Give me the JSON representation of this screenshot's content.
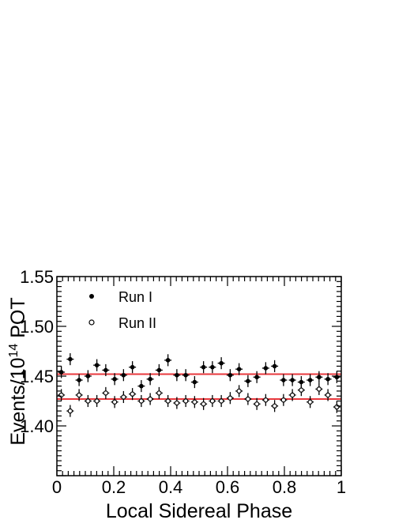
{
  "chart_data": {
    "type": "scatter",
    "xlabel": "Local Sidereal Phase",
    "ylabel_parts": {
      "prefix": "Events/10",
      "superscript": "14",
      "suffix": " POT"
    },
    "xlim": [
      0,
      1
    ],
    "ylim": [
      1.35,
      1.55
    ],
    "x_ticks": [
      0,
      0.2,
      0.4,
      0.6,
      0.8,
      1
    ],
    "x_tick_labels": [
      "0",
      "0.2",
      "0.4",
      "0.6",
      "0.8",
      "1"
    ],
    "y_ticks": [
      1.4,
      1.45,
      1.5,
      1.55
    ],
    "y_tick_labels": [
      "1.40",
      "1.45",
      "1.50",
      "1.55"
    ],
    "grid": false,
    "legend_position": "top-left",
    "bin_half_width": 0.0125,
    "series": [
      {
        "name": "Run I",
        "marker": "filled-circle",
        "fit_line": 1.452,
        "y": [
          1.454,
          1.467,
          1.446,
          1.45,
          1.461,
          1.456,
          1.447,
          1.451,
          1.459,
          1.44,
          1.447,
          1.456,
          1.466,
          1.451,
          1.451,
          1.444,
          1.459,
          1.459,
          1.463,
          1.451,
          1.457,
          1.445,
          1.449,
          1.458,
          1.46,
          1.446,
          1.446,
          1.444,
          1.446,
          1.449,
          1.447,
          1.449
        ],
        "y_err": 0.006
      },
      {
        "name": "Run II",
        "marker": "open-circle",
        "fit_line": 1.427,
        "y": [
          1.431,
          1.415,
          1.431,
          1.425,
          1.425,
          1.433,
          1.424,
          1.429,
          1.432,
          1.425,
          1.427,
          1.433,
          1.425,
          1.423,
          1.425,
          1.424,
          1.422,
          1.425,
          1.425,
          1.428,
          1.435,
          1.427,
          1.422,
          1.426,
          1.42,
          1.426,
          1.431,
          1.436,
          1.424,
          1.437,
          1.431,
          1.419
        ],
        "y_err": 0.006
      }
    ]
  },
  "colors": {
    "frame": "#000000",
    "fit_line": "#e8383d",
    "markers": "#000000"
  }
}
